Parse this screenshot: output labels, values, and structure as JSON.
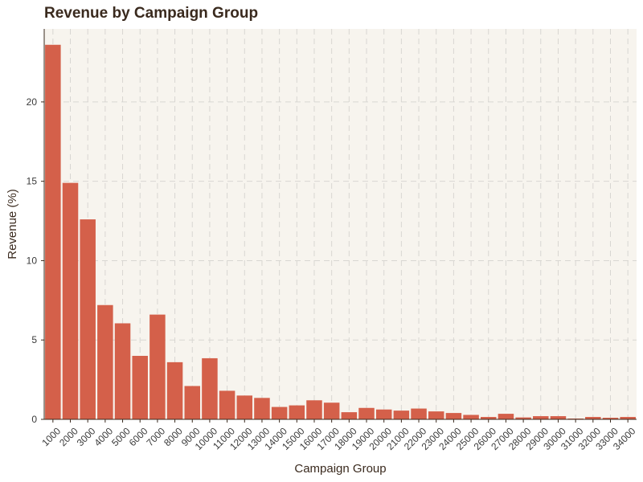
{
  "chart_data": {
    "type": "bar",
    "title": "Revenue by Campaign Group",
    "xlabel": "Campaign Group",
    "ylabel": "Revenue (%)",
    "ylim": [
      0,
      24.6
    ],
    "yticks": [
      0,
      5,
      10,
      15,
      20
    ],
    "grid": true,
    "colors": {
      "bar": "#D4604A",
      "panel_background": "#F7F4EE",
      "grid": "#D8D6D2",
      "axis": "#3a2a1e"
    },
    "categories": [
      "1000",
      "2000",
      "3000",
      "4000",
      "5000",
      "6000",
      "7000",
      "8000",
      "9000",
      "10000",
      "11000",
      "12000",
      "13000",
      "14000",
      "15000",
      "16000",
      "17000",
      "18000",
      "19000",
      "20000",
      "21000",
      "22000",
      "23000",
      "24000",
      "25000",
      "26000",
      "27000",
      "28000",
      "29000",
      "30000",
      "31000",
      "32000",
      "33000",
      "34000"
    ],
    "values": [
      23.6,
      14.9,
      12.6,
      7.2,
      6.05,
      4.0,
      6.6,
      3.6,
      2.1,
      3.85,
      1.8,
      1.5,
      1.35,
      0.78,
      0.88,
      1.2,
      1.05,
      0.45,
      0.72,
      0.62,
      0.55,
      0.68,
      0.5,
      0.4,
      0.28,
      0.15,
      0.35,
      0.12,
      0.2,
      0.2,
      0.05,
      0.15,
      0.1,
      0.15
    ]
  }
}
